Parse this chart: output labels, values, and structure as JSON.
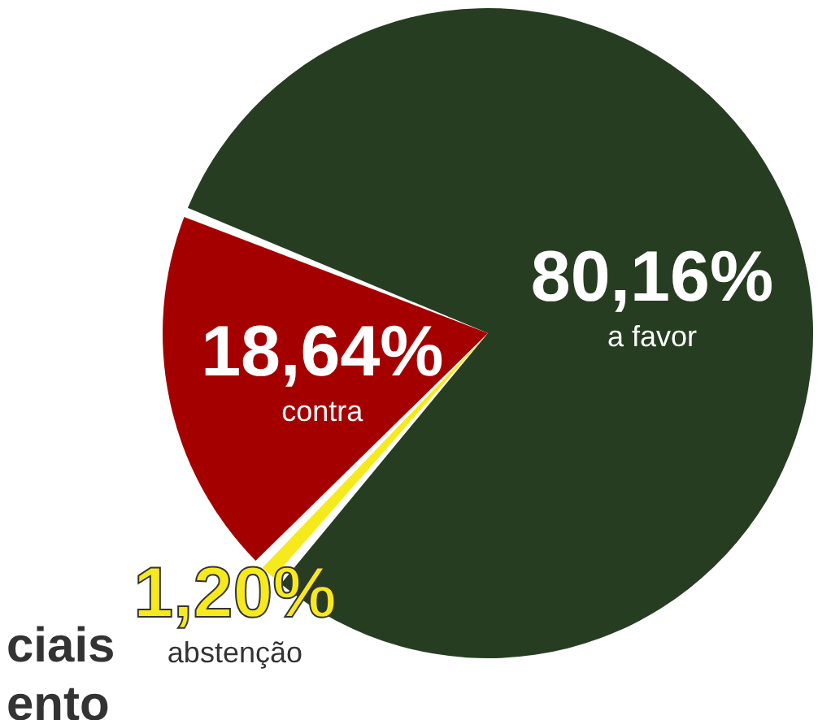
{
  "chart_data": {
    "type": "pie",
    "categories": [
      "a favor",
      "abstenção",
      "contra"
    ],
    "values": [
      80.16,
      1.2,
      18.64
    ],
    "value_labels": [
      "80,16%",
      "1,20%",
      "18,64%"
    ],
    "colors": [
      "#263d22",
      "#f7ea1c",
      "#a50000"
    ],
    "annotations": [
      "ciais",
      "ento"
    ]
  }
}
